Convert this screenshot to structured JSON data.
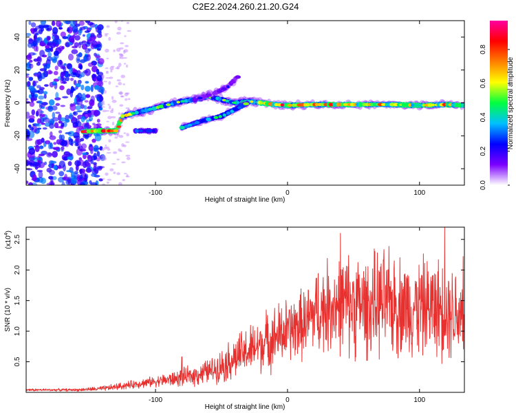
{
  "title": "C2E2.2024.260.21.20.G24",
  "chart_data": [
    {
      "type": "heatmap",
      "name": "spectrogram",
      "title": "C2E2.2024.260.21.20.G24",
      "xlabel": "Height of straight line (km)",
      "ylabel": "Frequency (Hz)",
      "xlim": [
        -198,
        134
      ],
      "ylim": [
        -50,
        50
      ],
      "xticks": [
        -100,
        0,
        100
      ],
      "yticks": [
        -40,
        -20,
        0,
        20,
        40
      ],
      "colorbar": {
        "label": "Normalized spectral amplitude",
        "range": [
          0.0,
          0.97
        ],
        "ticks": [
          0.0,
          0.2,
          0.4,
          0.6,
          0.8
        ],
        "tick_labels": [
          "0.0",
          "0.2",
          "0.4",
          "0.6",
          "0.8"
        ],
        "colormap": [
          "#ffffff",
          "#7b00ff",
          "#0000ff",
          "#00c0ff",
          "#00ff40",
          "#ffff00",
          "#ff8000",
          "#ff0000",
          "#ff00a0"
        ]
      },
      "traces": [
        {
          "name": "main-signal",
          "points": [
            [
              -155,
              -17.5
            ],
            [
              -145,
              -17
            ],
            [
              -138,
              -17
            ],
            [
              -130,
              -17
            ],
            [
              -125,
              -8
            ],
            [
              -115,
              -6
            ],
            [
              -100,
              -3
            ],
            [
              -90,
              -1
            ],
            [
              -80,
              1
            ],
            [
              -70,
              2
            ],
            [
              -60,
              4
            ],
            [
              -50,
              2
            ],
            [
              -40,
              0
            ],
            [
              -30,
              1
            ],
            [
              -20,
              0
            ],
            [
              -10,
              -1
            ],
            [
              0,
              -1.5
            ],
            [
              20,
              -1
            ],
            [
              40,
              -1
            ],
            [
              60,
              -1
            ],
            [
              80,
              -1
            ],
            [
              100,
              -1.5
            ],
            [
              120,
              -1
            ],
            [
              134,
              -1.5
            ]
          ]
        },
        {
          "name": "faint-branch",
          "points": [
            [
              -115,
              -17
            ],
            [
              -100,
              -17
            ]
          ]
        },
        {
          "name": "lower-branch",
          "points": [
            [
              -80,
              -15
            ],
            [
              -65,
              -11
            ],
            [
              -50,
              -8
            ],
            [
              -40,
              -4
            ],
            [
              -30,
              0
            ]
          ]
        },
        {
          "name": "upper-branch",
          "points": [
            [
              -70,
              2
            ],
            [
              -55,
              6
            ],
            [
              -45,
              10
            ],
            [
              -38,
              16
            ]
          ]
        }
      ]
    },
    {
      "type": "line",
      "name": "snr",
      "xlabel": "Height of straight line (km)",
      "ylabel": "SNR (10 * v/v)",
      "y_multiplier": "(x10",
      "y_multiplier_exp": "4",
      "y_multiplier_close": ")",
      "xlim": [
        -198,
        134
      ],
      "ylim": [
        0.0,
        2.7
      ],
      "xticks": [
        -100,
        0,
        100
      ],
      "yticks": [
        0.5,
        1.0,
        1.5,
        2.0,
        2.5
      ],
      "ytick_labels": [
        "0.5",
        "1.0",
        "1.5",
        "2.0",
        "2.5"
      ],
      "color": "#e8312f",
      "envelope": {
        "x": [
          -198,
          -160,
          -140,
          -120,
          -100,
          -85,
          -70,
          -55,
          -45,
          -35,
          -25,
          -15,
          -5,
          5,
          15,
          20,
          30,
          40,
          50,
          60,
          70,
          80,
          90,
          100,
          110,
          120,
          134
        ],
        "mean": [
          0.04,
          0.04,
          0.06,
          0.12,
          0.18,
          0.22,
          0.28,
          0.38,
          0.5,
          0.62,
          0.72,
          0.85,
          0.95,
          1.05,
          1.15,
          1.3,
          1.4,
          1.45,
          1.45,
          1.4,
          1.45,
          1.45,
          1.4,
          1.4,
          1.4,
          1.35,
          1.3
        ],
        "amp": [
          0.02,
          0.02,
          0.04,
          0.06,
          0.08,
          0.12,
          0.16,
          0.2,
          0.3,
          0.35,
          0.4,
          0.45,
          0.5,
          0.5,
          0.55,
          0.65,
          0.7,
          0.75,
          0.8,
          0.75,
          0.8,
          0.8,
          0.75,
          0.75,
          0.75,
          0.75,
          0.7
        ]
      },
      "peak_values": [
        {
          "x": -80,
          "y": 0.58
        },
        {
          "x": 40,
          "y": 2.6
        },
        {
          "x": 119,
          "y": 2.7
        },
        {
          "x": 133,
          "y": 2.22
        }
      ]
    }
  ]
}
